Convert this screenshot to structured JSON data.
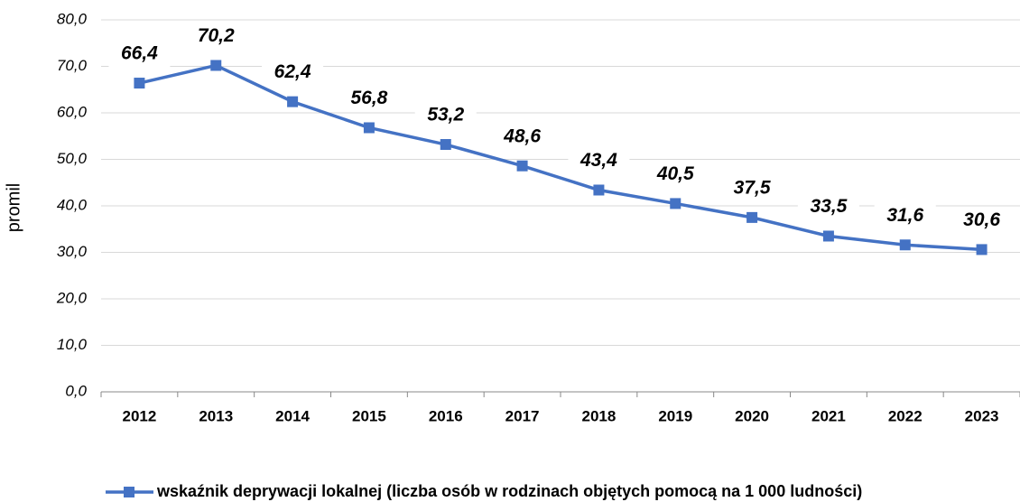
{
  "chart_data": {
    "type": "line",
    "categories": [
      "2012",
      "2013",
      "2014",
      "2015",
      "2016",
      "2017",
      "2018",
      "2019",
      "2020",
      "2021",
      "2022",
      "2023"
    ],
    "series": [
      {
        "name": "wskaźnik deprywacji lokalnej (liczba osób w rodzinach objętych pomocą na 1 000 ludności)",
        "color": "#4472c4",
        "values": [
          66.4,
          70.2,
          62.4,
          56.8,
          53.2,
          48.6,
          43.4,
          40.5,
          37.5,
          33.5,
          31.6,
          30.6
        ],
        "value_labels": [
          "66,4",
          "70,2",
          "62,4",
          "56,8",
          "53,2",
          "48,6",
          "43,4",
          "40,5",
          "37,5",
          "33,5",
          "31,6",
          "30,6"
        ]
      }
    ],
    "y_label": "promil",
    "ylim": [
      0,
      80
    ],
    "yticks": [
      {
        "value": 0,
        "label": "0,0"
      },
      {
        "value": 10,
        "label": "10,0"
      },
      {
        "value": 20,
        "label": "20,0"
      },
      {
        "value": 30,
        "label": "30,0"
      },
      {
        "value": 40,
        "label": "40,0"
      },
      {
        "value": 50,
        "label": "50,0"
      },
      {
        "value": 60,
        "label": "60,0"
      },
      {
        "value": 70,
        "label": "70,0"
      },
      {
        "value": 80,
        "label": "80,0"
      }
    ],
    "grid": true,
    "legend": "bottom"
  }
}
